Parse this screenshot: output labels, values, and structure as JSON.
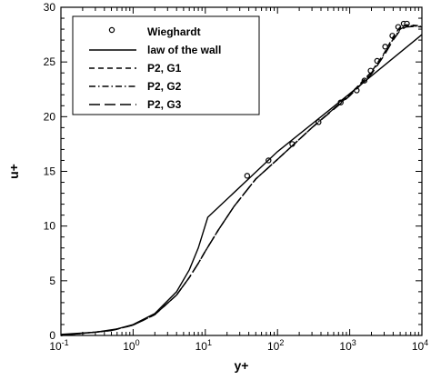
{
  "chart_data": {
    "type": "line",
    "xlabel": "y+",
    "ylabel": "u+",
    "xscale": "log",
    "xlim": [
      0.1,
      10000
    ],
    "ylim": [
      0,
      30
    ],
    "grid": false,
    "legend_position": "top-left",
    "x_tick_labels": [
      {
        "value": 0.1,
        "base": "10",
        "exp": "-1"
      },
      {
        "value": 1,
        "base": "10",
        "exp": "0"
      },
      {
        "value": 10,
        "base": "10",
        "exp": "1"
      },
      {
        "value": 100,
        "base": "10",
        "exp": "2"
      },
      {
        "value": 1000,
        "base": "10",
        "exp": "3"
      },
      {
        "value": 10000,
        "base": "10",
        "exp": "4"
      }
    ],
    "y_ticks": [
      0,
      5,
      10,
      15,
      20,
      25,
      30
    ],
    "y_tick_labels": [
      "0",
      "5",
      "10",
      "15",
      "20",
      "25",
      "30"
    ],
    "series": [
      {
        "name": "Wieghardt",
        "style": "markers",
        "x": [
          38,
          75,
          160,
          370,
          750,
          1250,
          1600,
          1950,
          2400,
          3100,
          3900,
          4700,
          5600,
          6200
        ],
        "y": [
          14.6,
          16.0,
          17.5,
          19.5,
          21.3,
          22.4,
          23.3,
          24.2,
          25.1,
          26.4,
          27.4,
          28.2,
          28.5,
          28.5
        ]
      },
      {
        "name": "law of the wall",
        "style": "solid",
        "x": [
          0.1,
          0.3,
          0.6,
          1,
          2,
          4,
          6,
          8,
          10.8,
          100,
          1000,
          10000
        ],
        "y": [
          0.1,
          0.3,
          0.6,
          1,
          2,
          4,
          6,
          8,
          10.8,
          16.8,
          22.1,
          27.5
        ]
      },
      {
        "name": "P2, G1",
        "style": "dashed",
        "x": [
          0.1,
          0.5,
          1,
          2,
          4,
          6,
          8,
          10,
          15,
          25,
          50,
          100,
          300,
          1000,
          2000,
          3000,
          4000,
          5000,
          6000,
          8000,
          10000
        ],
        "y": [
          0.0,
          0.45,
          0.95,
          1.9,
          3.7,
          5.3,
          6.6,
          7.7,
          9.6,
          11.8,
          14.3,
          16.1,
          19.0,
          22.0,
          24.1,
          25.8,
          27.3,
          28.2,
          28.4,
          28.35,
          28.3
        ]
      },
      {
        "name": "P2, G2",
        "style": "dash-dot",
        "x": [
          0.1,
          0.5,
          1,
          2,
          4,
          6,
          8,
          10,
          15,
          25,
          50,
          100,
          300,
          1000,
          2000,
          3000,
          4000,
          5000,
          6000,
          8000,
          10000
        ],
        "y": [
          0.0,
          0.45,
          0.95,
          1.9,
          3.7,
          5.3,
          6.6,
          7.7,
          9.6,
          11.8,
          14.3,
          16.1,
          19.0,
          22.0,
          24.0,
          25.7,
          27.1,
          28.0,
          28.3,
          28.3,
          28.25
        ]
      },
      {
        "name": "P2, G3",
        "style": "long-dash",
        "x": [
          0.1,
          0.5,
          1,
          2,
          4,
          6,
          8,
          10,
          15,
          25,
          50,
          100,
          300,
          1000,
          2000,
          3000,
          4000,
          5000,
          6000,
          8000,
          10000
        ],
        "y": [
          0.0,
          0.45,
          0.95,
          1.9,
          3.7,
          5.3,
          6.6,
          7.7,
          9.6,
          11.8,
          14.3,
          16.1,
          19.0,
          21.9,
          23.9,
          25.6,
          27.0,
          27.9,
          28.2,
          28.25,
          28.2
        ]
      }
    ]
  }
}
